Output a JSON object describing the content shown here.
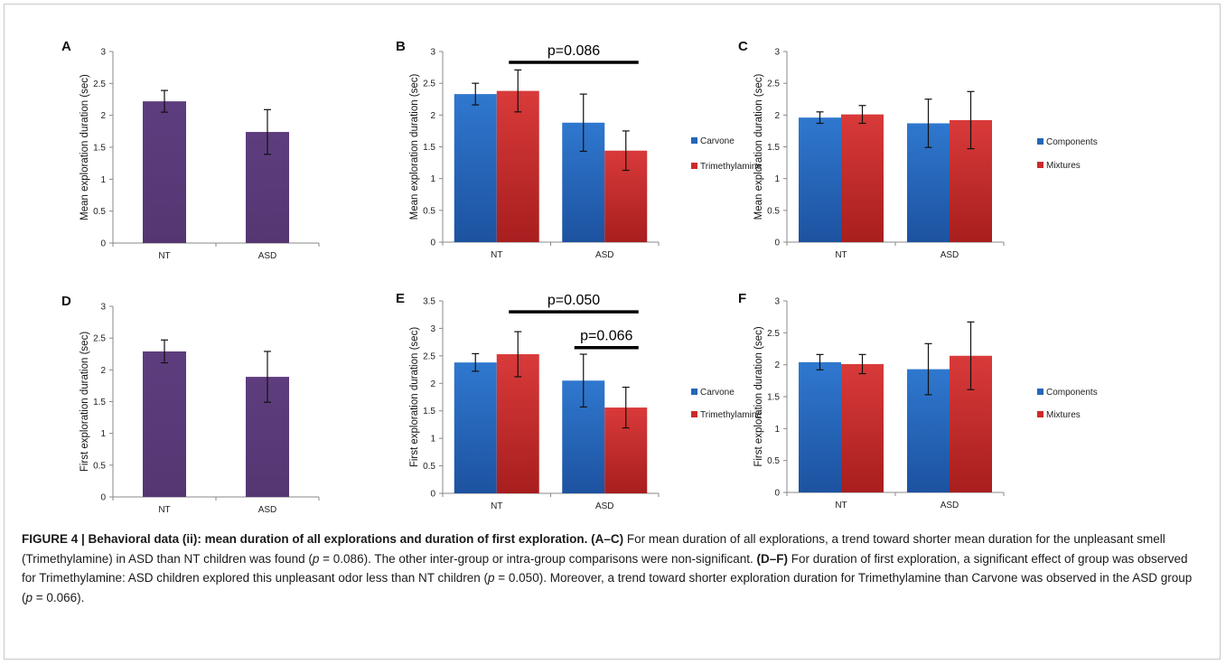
{
  "colors": {
    "purple": "#5a3a78",
    "blue": "#2566b8",
    "red": "#cc2a2a",
    "axis": "#888888"
  },
  "chart_data": [
    {
      "panel": "A",
      "type": "bar",
      "categories": [
        "NT",
        "ASD"
      ],
      "series": [
        {
          "values": [
            2.22,
            1.74
          ],
          "errors": [
            0.17,
            0.35
          ],
          "color": "purple"
        }
      ],
      "ylabel": "Mean exploration duration (sec)",
      "ylim": [
        0,
        3
      ],
      "yticks": [
        0,
        0.5,
        1,
        1.5,
        2,
        2.5,
        3
      ],
      "ytick_labels": [
        "0",
        "0.5",
        "1",
        "1.5",
        "2",
        "2.5",
        "3"
      ],
      "legend": [],
      "annotations": []
    },
    {
      "panel": "B",
      "type": "bar",
      "categories": [
        "NT",
        "ASD"
      ],
      "series": [
        {
          "name": "Carvone",
          "values": [
            2.33,
            1.88
          ],
          "errors": [
            0.17,
            0.45
          ],
          "color": "blue"
        },
        {
          "name": "Trimethylamine",
          "values": [
            2.38,
            1.44
          ],
          "errors": [
            0.33,
            0.31
          ],
          "color": "red"
        }
      ],
      "ylabel": "Mean exploration duration (sec)",
      "ylim": [
        0,
        3
      ],
      "yticks": [
        0,
        0.5,
        1,
        1.5,
        2,
        2.5,
        3
      ],
      "ytick_labels": [
        "0",
        "0.5",
        "1",
        "1.5",
        "2",
        "2.5",
        "3"
      ],
      "legend": [
        "Carvone",
        "Trimethylamine"
      ],
      "annotations": [
        {
          "text": "p=0.086",
          "from": [
            0,
            1
          ],
          "to": [
            1,
            1
          ],
          "y": 2.83
        }
      ]
    },
    {
      "panel": "C",
      "type": "bar",
      "categories": [
        "NT",
        "ASD"
      ],
      "series": [
        {
          "name": "Components",
          "values": [
            1.96,
            1.87
          ],
          "errors": [
            0.09,
            0.38
          ],
          "color": "blue"
        },
        {
          "name": "Mixtures",
          "values": [
            2.01,
            1.92
          ],
          "errors": [
            0.14,
            0.45
          ],
          "color": "red"
        }
      ],
      "ylabel": "Mean exploration duration (sec)",
      "ylim": [
        0,
        3
      ],
      "yticks": [
        0,
        0.5,
        1,
        1.5,
        2,
        2.5,
        3
      ],
      "ytick_labels": [
        "0",
        "0.5",
        "1",
        "1.5",
        "2",
        "2.5",
        "3"
      ],
      "legend": [
        "Components",
        "Mixtures"
      ],
      "annotations": []
    },
    {
      "panel": "D",
      "type": "bar",
      "categories": [
        "NT",
        "ASD"
      ],
      "series": [
        {
          "values": [
            2.29,
            1.89
          ],
          "errors": [
            0.18,
            0.4
          ],
          "color": "purple"
        }
      ],
      "ylabel": "First exploration duration (sec)",
      "ylim": [
        0,
        3
      ],
      "yticks": [
        0,
        0.5,
        1,
        1.5,
        2,
        2.5,
        3
      ],
      "ytick_labels": [
        "0",
        "0.5",
        "1",
        "1.5",
        "2",
        "2.5",
        "3"
      ],
      "legend": [],
      "annotations": []
    },
    {
      "panel": "E",
      "type": "bar",
      "categories": [
        "NT",
        "ASD"
      ],
      "series": [
        {
          "name": "Carvone",
          "values": [
            2.38,
            2.05
          ],
          "errors": [
            0.16,
            0.48
          ],
          "color": "blue"
        },
        {
          "name": "Trimethylamine",
          "values": [
            2.53,
            1.56
          ],
          "errors": [
            0.41,
            0.37
          ],
          "color": "red"
        }
      ],
      "ylabel": "First exploration duration (sec)",
      "ylim": [
        0,
        3.5
      ],
      "yticks": [
        0,
        0.5,
        1,
        1.5,
        2,
        2.5,
        3,
        3.5
      ],
      "ytick_labels": [
        "0",
        "0.5",
        "1",
        "1.5",
        "2",
        "2.5",
        "3",
        "3.5"
      ],
      "legend": [
        "Carvone",
        "Trimethylamine"
      ],
      "annotations": [
        {
          "text": "p=0.050",
          "from": [
            0,
            1
          ],
          "to": [
            1,
            1
          ],
          "y": 3.3
        },
        {
          "text": "p=0.066",
          "from": [
            1,
            0
          ],
          "to": [
            1,
            1
          ],
          "y": 2.65
        }
      ]
    },
    {
      "panel": "F",
      "type": "bar",
      "categories": [
        "NT",
        "ASD"
      ],
      "series": [
        {
          "name": "Components",
          "values": [
            2.04,
            1.93
          ],
          "errors": [
            0.12,
            0.4
          ],
          "color": "blue"
        },
        {
          "name": "Mixtures",
          "values": [
            2.01,
            2.14
          ],
          "errors": [
            0.15,
            0.53
          ],
          "color": "red"
        }
      ],
      "ylabel": "First exploration duration (sec)",
      "ylim": [
        0,
        3
      ],
      "yticks": [
        0,
        0.5,
        1,
        1.5,
        2,
        2.5,
        3
      ],
      "ytick_labels": [
        "0",
        "0.5",
        "1",
        "1.5",
        "2",
        "2.5",
        "3"
      ],
      "legend": [
        "Components",
        "Mixtures"
      ],
      "annotations": []
    }
  ],
  "caption": {
    "title": "FIGURE 4 | Behavioral data (ii): mean duration of all explorations and duration of first exploration.",
    "ref1": "(A–C)",
    "text1": " For mean duration of all explorations, a trend toward shorter mean duration for the unpleasant smell (Trimethylamine) in ASD than NT children was found (",
    "p1": "p",
    "v1": " = 0.086). The other inter-group or intra-group comparisons were non-significant. ",
    "ref2": "(D–F)",
    "text2": " For duration of first exploration, a significant effect of group was observed for Trimethylamine: ASD children explored this unpleasant odor less than NT children (",
    "p2": "p",
    "v2": " = 0.050). Moreover, a trend toward shorter exploration duration for Trimethylamine than Carvone was observed in the ASD group (",
    "p3": "p",
    "v3": " = 0.066)."
  }
}
